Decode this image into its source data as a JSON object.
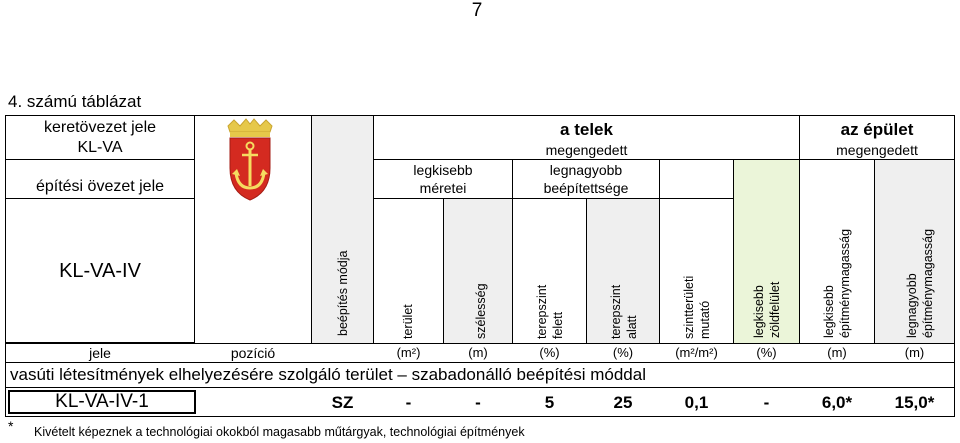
{
  "page_number": "7",
  "table_title": "4. számú táblázat",
  "header": {
    "frame_plan_label": "keretövezet jele",
    "frame_plan_code": "KL-VA",
    "zone_label": "építési övezet jele",
    "zone_code": "KL-VA-IV",
    "plot_title": "a telek",
    "plot_subtitle": "megengedett",
    "smallest_size_line1": "legkisebb",
    "smallest_size_line2": "méretei",
    "largest_coverage_line1": "legnagyobb",
    "largest_coverage_line2": "beépítettsége",
    "building_title": "az épület",
    "building_subtitle": "megengedett"
  },
  "vertical_headers": {
    "building_mode": "beépítés módja",
    "area": "terület",
    "width": "szélesség",
    "above_ground_1": "terepszint",
    "above_ground_2": "felett",
    "below_ground_1": "terepszint",
    "below_ground_2": "alatt",
    "floor_ratio_1": "szintterületi",
    "floor_ratio_2": "mutató",
    "green_1": "legkisebb",
    "green_2": "zöldfelület",
    "min_height_1": "legkisebb",
    "min_height_2": "építménymagasság",
    "max_height_1": "legnagyobb",
    "max_height_2": "építménymagasság"
  },
  "units": {
    "code": "jele",
    "position": "pozíció",
    "area": "(m²)",
    "width": "(m)",
    "above": "(%)",
    "below": "(%)",
    "ratio": "(m²/m²)",
    "green": "(%)",
    "min_height": "(m)",
    "max_height": "(m)"
  },
  "section_title": "vasúti létesítmények elhelyezésére szolgáló terület – szabadonálló beépítési móddal",
  "row": {
    "code": "KL-VA-IV-1",
    "mode": "SZ",
    "area": "-",
    "width": "-",
    "above": "5",
    "below": "25",
    "ratio": "0,1",
    "green": "-",
    "min_height": "6,0*",
    "max_height": "15,0*"
  },
  "footnote_star": "*",
  "footnote": "Kivételt képeznek a technológiai okokból magasabb műtárgyak, technológiai építmények",
  "colors": {
    "shade": "#efefef",
    "green_column": "#ebf5d9",
    "crest_red": "#d42a20",
    "crest_gold": "#e6c84a"
  }
}
